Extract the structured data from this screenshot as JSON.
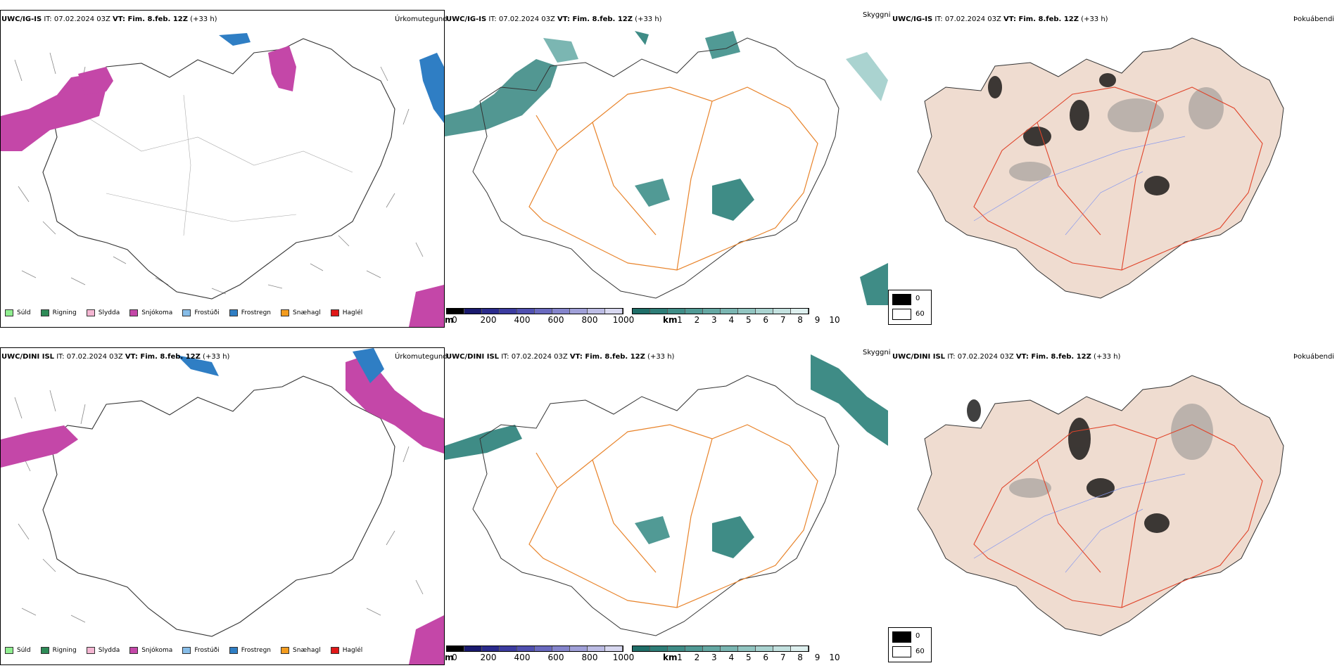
{
  "rows": [
    {
      "header_model": "UWC/IG-IS",
      "header_rest": " IT: 07.02.2024 03Z ",
      "header_vt": "VT: Fim. 8.feb. 12Z",
      "header_lead": " (+33 h)",
      "precip_title": "Úrkomutegund",
      "vis_title": "Skyggni",
      "fog_title": "Þokuábendi"
    },
    {
      "header_model": "UWC/DINI ISL",
      "header_rest": " IT: 07.02.2024 03Z ",
      "header_vt": "VT: Fim. 8.feb. 12Z",
      "header_lead": " (+33 h)",
      "precip_title": "Úrkomutegund",
      "vis_title": "Skyggni",
      "fog_title": "Þokuábendi"
    }
  ],
  "precip_legend": [
    {
      "label": "Súld",
      "color": "#90ee90"
    },
    {
      "label": "Rigning",
      "color": "#2e8b57"
    },
    {
      "label": "Slydda",
      "color": "#f4b6d2"
    },
    {
      "label": "Snjókoma",
      "color": "#c447a8"
    },
    {
      "label": "Frostúði",
      "color": "#87bde8"
    },
    {
      "label": "Frostregn",
      "color": "#2f7ec4"
    },
    {
      "label": "Snæhagl",
      "color": "#f39c1f"
    },
    {
      "label": "Haglél",
      "color": "#e01818"
    }
  ],
  "cloud_base_scale": {
    "unit": "m",
    "ticks": [
      "0",
      "200",
      "400",
      "600",
      "800",
      "1000"
    ],
    "colors": [
      "#000000",
      "#1a1a6e",
      "#2b2b8c",
      "#3c3ca0",
      "#5050b0",
      "#6a6abf",
      "#8585cc",
      "#a0a0d8",
      "#bcbce4",
      "#d8d8f0"
    ]
  },
  "visibility_scale": {
    "unit": "km",
    "ticks": [
      "1",
      "2",
      "3",
      "4",
      "5",
      "6",
      "7",
      "8",
      "9",
      "10"
    ],
    "colors": [
      "#1f6e68",
      "#2e7d77",
      "#3f8c86",
      "#519a95",
      "#65a8a3",
      "#7bb6b2",
      "#92c5c1",
      "#aad3d0",
      "#c3e1df",
      "#ddefee"
    ]
  },
  "fog_scale": {
    "items": [
      {
        "label": "0",
        "color": "#000000"
      },
      {
        "label": "60",
        "color": "#ffffff"
      }
    ]
  },
  "colors": {
    "snow": "#c447a8",
    "freezing_rain": "#2f7ec4",
    "visibility": "#3f8c86",
    "roads": "#e8832a",
    "land_fog": "#efdcd0",
    "fog_roads": "#e0442a",
    "rivers": "#8899ee"
  }
}
